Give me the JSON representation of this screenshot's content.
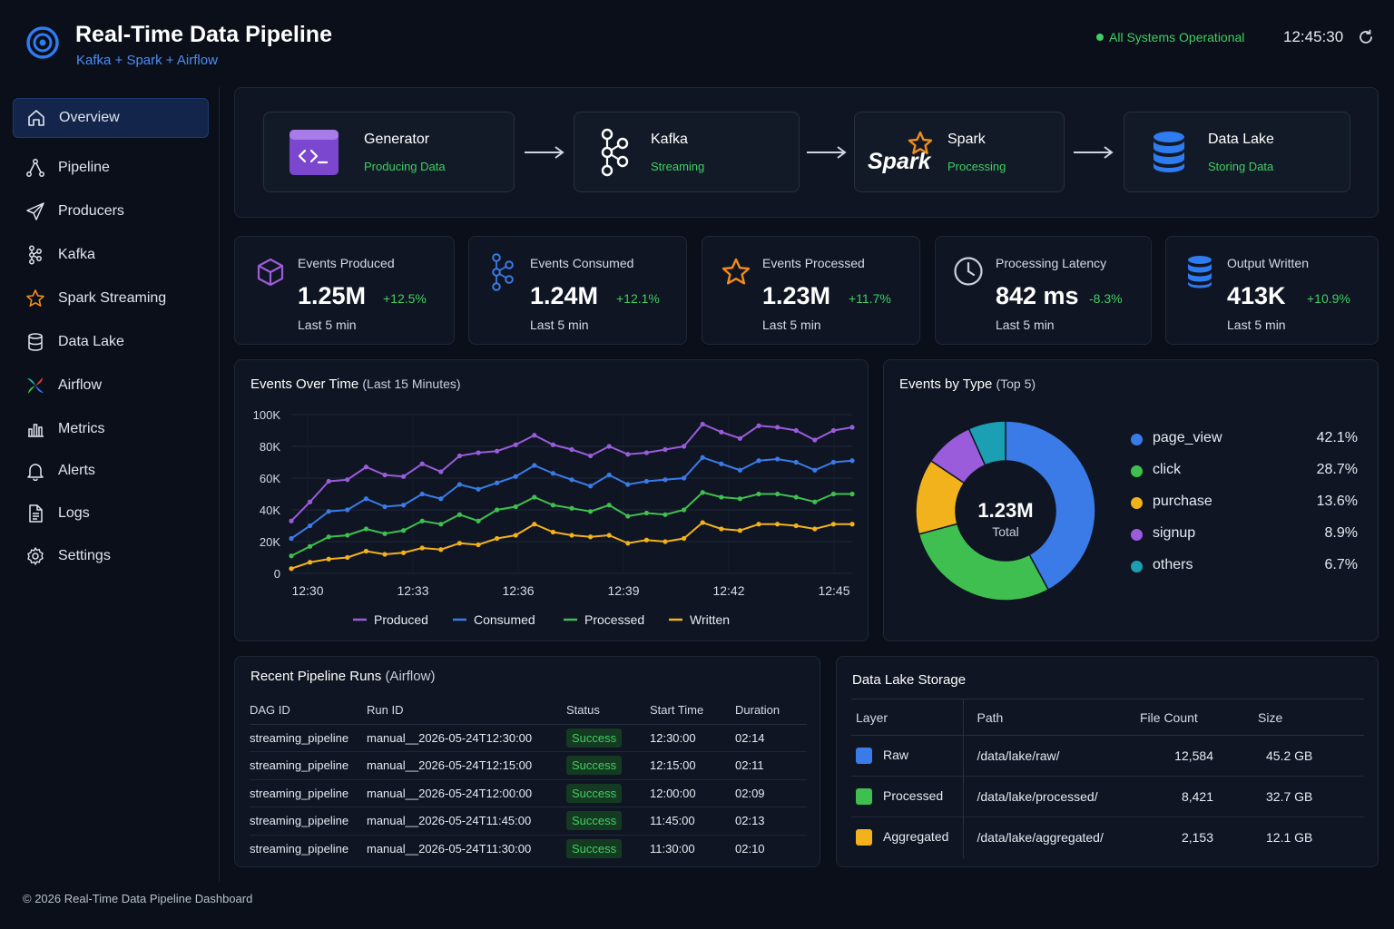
{
  "header": {
    "title": "Real-Time Data Pipeline",
    "subtitle": "Kafka + Spark + Airflow",
    "status": "All Systems Operational",
    "time": "12:45:30"
  },
  "sidebar": {
    "items": [
      {
        "label": "Overview",
        "icon": "home-icon"
      },
      {
        "label": "Pipeline",
        "icon": "pipeline-icon"
      },
      {
        "label": "Producers",
        "icon": "send-icon"
      },
      {
        "label": "Kafka",
        "icon": "kafka-icon"
      },
      {
        "label": "Spark Streaming",
        "icon": "star-icon"
      },
      {
        "label": "Data Lake",
        "icon": "database-icon"
      },
      {
        "label": "Airflow",
        "icon": "airflow-icon"
      },
      {
        "label": "Metrics",
        "icon": "bar-chart-icon"
      },
      {
        "label": "Alerts",
        "icon": "bell-icon"
      },
      {
        "label": "Logs",
        "icon": "file-icon"
      },
      {
        "label": "Settings",
        "icon": "gear-icon"
      }
    ]
  },
  "flow": [
    {
      "name": "Generator",
      "status": "Producing Data",
      "icon": "code-window-icon"
    },
    {
      "name": "Kafka",
      "status": "Streaming",
      "icon": "kafka-icon"
    },
    {
      "name": "Spark",
      "status": "Processing",
      "icon": "spark-logo-icon",
      "logo_text": "Spark"
    },
    {
      "name": "Data Lake",
      "status": "Storing Data",
      "icon": "database-icon"
    }
  ],
  "kpis": [
    {
      "label": "Events Produced",
      "value": "1.25M",
      "delta": "+12.5%",
      "sub": "Last 5 min",
      "icon": "cube-icon"
    },
    {
      "label": "Events Consumed",
      "value": "1.24M",
      "delta": "+12.1%",
      "sub": "Last 5 min",
      "icon": "kafka-icon"
    },
    {
      "label": "Events Processed",
      "value": "1.23M",
      "delta": "+11.7%",
      "sub": "Last 5 min",
      "icon": "star-icon"
    },
    {
      "label": "Processing Latency",
      "value": "842 ms",
      "delta": "-8.3%",
      "sub": "Last 5 min",
      "icon": "clock-icon"
    },
    {
      "label": "Output Written",
      "value": "413K",
      "delta": "+10.9%",
      "sub": "Last 5 min",
      "icon": "database-icon"
    }
  ],
  "colors": {
    "produced": "#9a5cdb",
    "consumed": "#3b7be8",
    "processed": "#3fbf4f",
    "written": "#f2b21b",
    "others": "#1a9fb3",
    "success": "#3fcf62"
  },
  "line_chart": {
    "title": "Events Over Time",
    "title_suffix": "(Last 15 Minutes)",
    "yticks": [
      "0",
      "20K",
      "40K",
      "60K",
      "80K",
      "100K"
    ],
    "xticks": [
      "12:30",
      "12:33",
      "12:36",
      "12:39",
      "12:42",
      "12:45"
    ]
  },
  "donut": {
    "title": "Events by Type",
    "title_suffix": "(Top 5)",
    "center_value": "1.23M",
    "center_label": "Total"
  },
  "runs": {
    "title": "Recent Pipeline Runs",
    "title_suffix": "(Airflow)",
    "headers": [
      "DAG ID",
      "Run ID",
      "Status",
      "Start Time",
      "Duration"
    ],
    "rows": [
      [
        "streaming_pipeline",
        "manual__2026-05-24T12:30:00",
        "Success",
        "12:30:00",
        "02:14"
      ],
      [
        "streaming_pipeline",
        "manual__2026-05-24T12:15:00",
        "Success",
        "12:15:00",
        "02:11"
      ],
      [
        "streaming_pipeline",
        "manual__2026-05-24T12:00:00",
        "Success",
        "12:00:00",
        "02:09"
      ],
      [
        "streaming_pipeline",
        "manual__2026-05-24T11:45:00",
        "Success",
        "11:45:00",
        "02:13"
      ],
      [
        "streaming_pipeline",
        "manual__2026-05-24T11:30:00",
        "Success",
        "11:30:00",
        "02:10"
      ]
    ]
  },
  "lake": {
    "title": "Data Lake Storage",
    "headers": [
      "Layer",
      "Path",
      "File Count",
      "Size"
    ],
    "rows": [
      {
        "layer": "Raw",
        "path": "/data/lake/raw/",
        "count": "12,584",
        "size": "45.2 GB",
        "color": "#3b7be8"
      },
      {
        "layer": "Processed",
        "path": "/data/lake/processed/",
        "count": "8,421",
        "size": "32.7 GB",
        "color": "#3fbf4f"
      },
      {
        "layer": "Aggregated",
        "path": "/data/lake/aggregated/",
        "count": "2,153",
        "size": "12.1 GB",
        "color": "#f2b21b"
      }
    ]
  },
  "footer": "© 2026 Real-Time Data Pipeline Dashboard",
  "chart_data": [
    {
      "type": "line",
      "title": "Events Over Time (Last 15 Minutes)",
      "x": [
        "12:30",
        "12:30:30",
        "12:31",
        "12:31:30",
        "12:32",
        "12:32:30",
        "12:33",
        "12:33:30",
        "12:34",
        "12:34:30",
        "12:35",
        "12:35:30",
        "12:36",
        "12:36:30",
        "12:37",
        "12:37:30",
        "12:38",
        "12:38:30",
        "12:39",
        "12:39:30",
        "12:40",
        "12:40:30",
        "12:41",
        "12:41:30",
        "12:42",
        "12:42:30",
        "12:43",
        "12:43:30",
        "12:44",
        "12:44:30",
        "12:45"
      ],
      "xticks": [
        "12:30",
        "12:33",
        "12:36",
        "12:39",
        "12:42",
        "12:45"
      ],
      "ylim": [
        0,
        100000
      ],
      "legend": "bottom",
      "grid": true,
      "series": [
        {
          "name": "Produced",
          "values": [
            33000,
            45000,
            58000,
            59000,
            67000,
            62000,
            61000,
            69000,
            64000,
            74000,
            76000,
            77000,
            81000,
            87000,
            81000,
            78000,
            74000,
            80000,
            75000,
            76000,
            78000,
            80000,
            94000,
            89000,
            85000,
            93000,
            92000,
            90000,
            84000,
            90000,
            92000
          ]
        },
        {
          "name": "Consumed",
          "values": [
            22000,
            30000,
            39000,
            40000,
            47000,
            42000,
            43000,
            50000,
            47000,
            56000,
            53000,
            57000,
            61000,
            68000,
            63000,
            59000,
            55000,
            62000,
            56000,
            58000,
            59000,
            60000,
            73000,
            69000,
            65000,
            71000,
            72000,
            70000,
            65000,
            70000,
            71000
          ]
        },
        {
          "name": "Processed",
          "values": [
            11000,
            17000,
            23000,
            24000,
            28000,
            25000,
            27000,
            33000,
            31000,
            37000,
            33000,
            40000,
            42000,
            48000,
            43000,
            41000,
            39000,
            43000,
            36000,
            38000,
            37000,
            40000,
            51000,
            48000,
            47000,
            50000,
            50000,
            48000,
            45000,
            50000,
            50000
          ]
        },
        {
          "name": "Written",
          "values": [
            3000,
            7000,
            9000,
            10000,
            14000,
            12000,
            13000,
            16000,
            15000,
            19000,
            18000,
            22000,
            24000,
            31000,
            26000,
            24000,
            23000,
            24000,
            19000,
            21000,
            20000,
            22000,
            32000,
            28000,
            27000,
            31000,
            31000,
            30000,
            28000,
            31000,
            31000
          ]
        }
      ]
    },
    {
      "type": "pie",
      "title": "Events by Type (Top 5)",
      "categories": [
        "page_view",
        "click",
        "purchase",
        "signup",
        "others"
      ],
      "values": [
        42.1,
        28.7,
        13.6,
        8.9,
        6.7
      ],
      "labels": [
        "42.1%",
        "28.7%",
        "13.6%",
        "8.9%",
        "6.7%"
      ],
      "legend": "right"
    }
  ]
}
